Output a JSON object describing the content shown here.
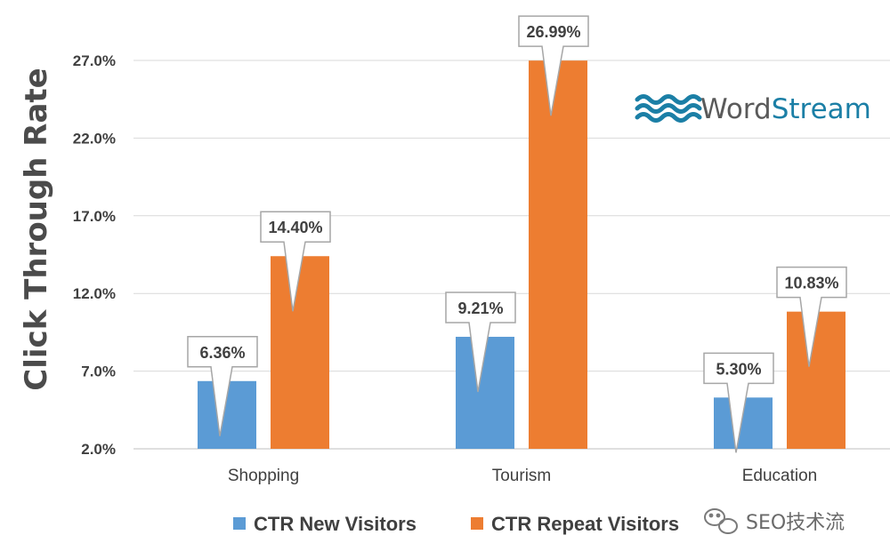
{
  "chart_data": {
    "type": "bar",
    "ylabel": "Click Through Rate",
    "ylim": [
      2.0,
      27.0
    ],
    "yticks": [
      "2.0%",
      "7.0%",
      "12.0%",
      "17.0%",
      "22.0%",
      "27.0%"
    ],
    "categories": [
      "Shopping",
      "Tourism",
      "Education"
    ],
    "series": [
      {
        "name": "CTR New Visitors",
        "color": "#5b9bd5",
        "values": [
          6.36,
          9.21,
          5.3
        ],
        "labels": [
          "6.36%",
          "9.21%",
          "5.30%"
        ]
      },
      {
        "name": "CTR Repeat Visitors",
        "color": "#ed7d31",
        "values": [
          14.4,
          26.99,
          10.83
        ],
        "labels": [
          "14.40%",
          "26.99%",
          "10.83%"
        ]
      }
    ],
    "grid": true,
    "legend_position": "bottom"
  },
  "logo": {
    "part1": "Word",
    "part2": "Stream",
    "icon": "wave-icon",
    "color1": "#5a5a5a",
    "color2": "#1b7fa6"
  },
  "watermark": {
    "text": "SEO技术流",
    "icon": "wechat-icon"
  }
}
